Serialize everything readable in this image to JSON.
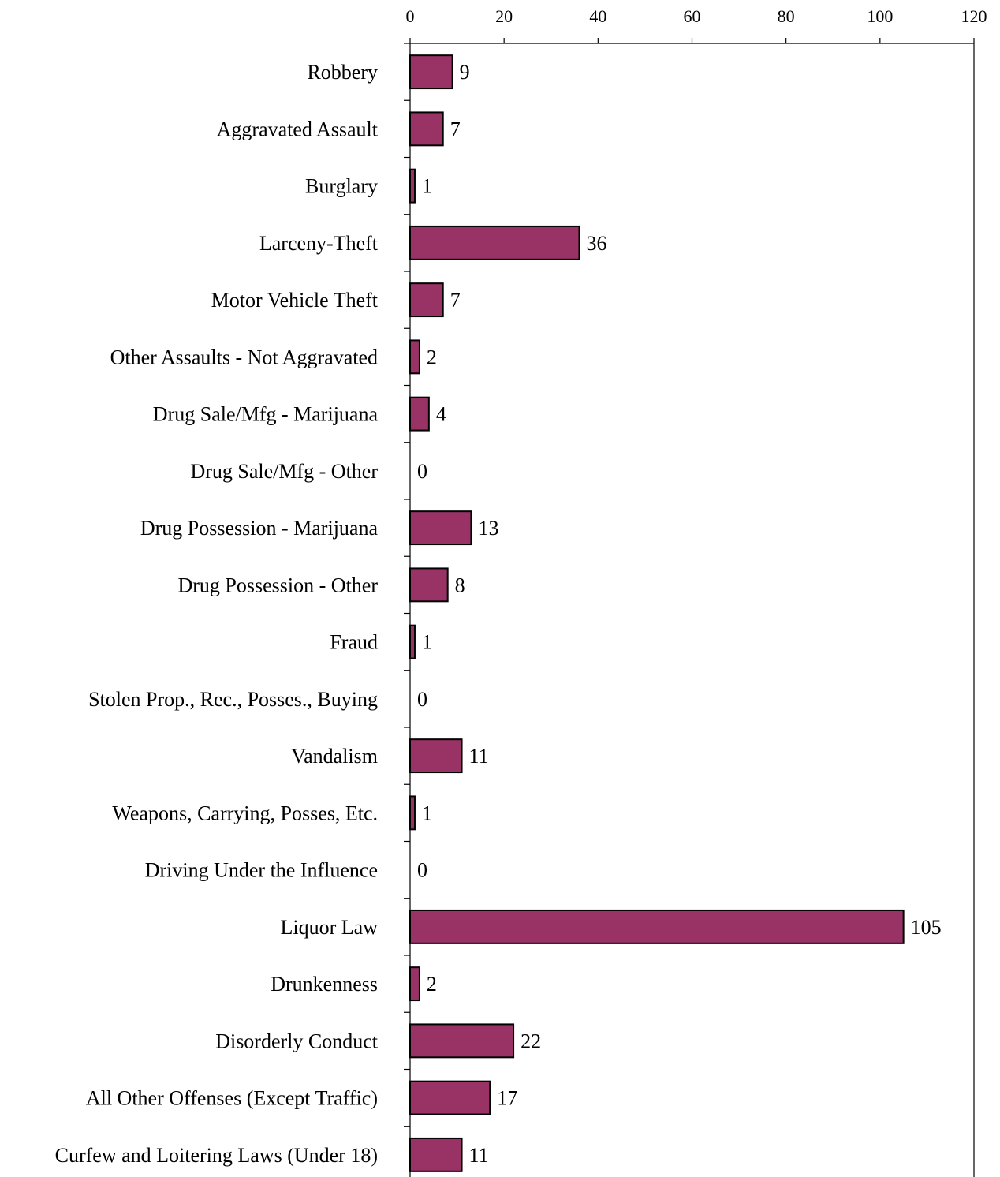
{
  "chart_data": {
    "type": "bar",
    "orientation": "horizontal",
    "categories": [
      "Robbery",
      "Aggravated Assault",
      "Burglary",
      "Larceny-Theft",
      "Motor Vehicle Theft",
      "Other Assaults - Not Aggravated",
      "Drug Sale/Mfg - Marijuana",
      "Drug Sale/Mfg - Other",
      "Drug Possession - Marijuana",
      "Drug Possession - Other",
      "Fraud",
      "Stolen Prop., Rec., Posses., Buying",
      "Vandalism",
      "Weapons, Carrying, Posses, Etc.",
      "Driving Under the Influence",
      "Liquor Law",
      "Drunkenness",
      "Disorderly Conduct",
      "All Other Offenses (Except Traffic)",
      "Curfew and Loitering Laws (Under 18)"
    ],
    "values": [
      9,
      7,
      1,
      36,
      7,
      2,
      4,
      0,
      13,
      8,
      1,
      0,
      11,
      1,
      0,
      105,
      2,
      22,
      17,
      11
    ],
    "x_ticks": [
      0,
      20,
      40,
      60,
      80,
      100,
      120
    ],
    "xlim": [
      0,
      120
    ],
    "x_axis_position": "top",
    "grid": false,
    "legend": "none",
    "bar_color": "#993366",
    "bar_edge_color": "#000000"
  }
}
